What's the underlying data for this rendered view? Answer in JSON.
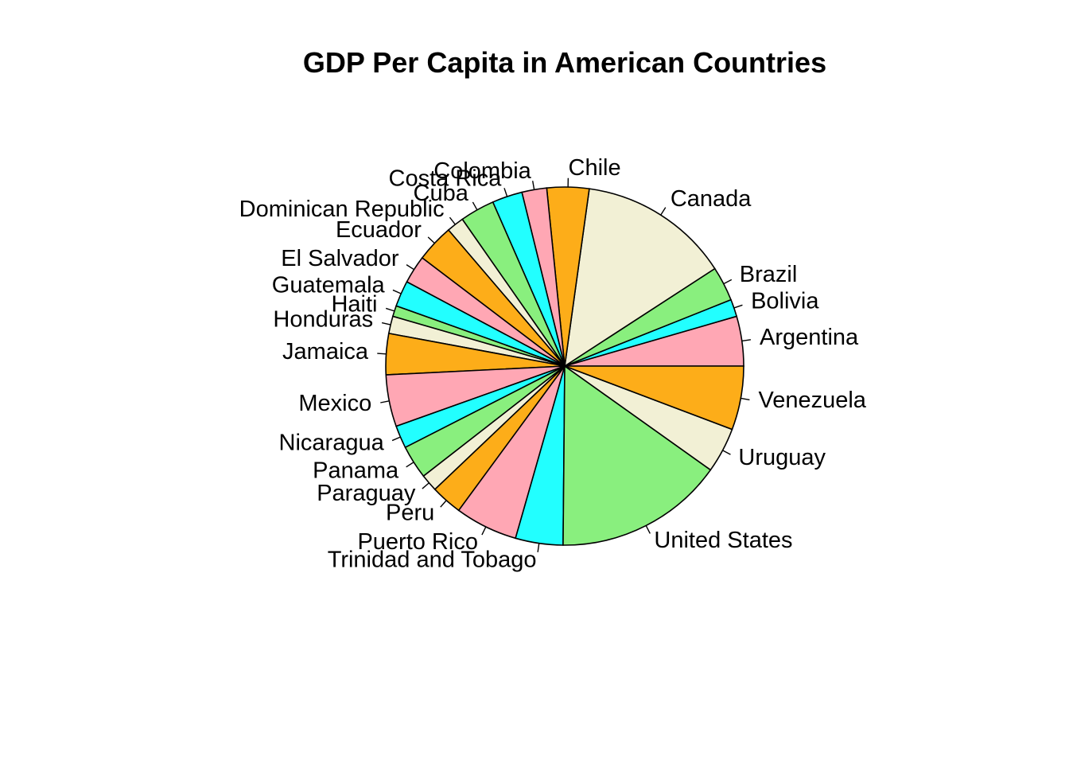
{
  "chart_data": {
    "type": "pie",
    "title": "GDP Per Capita in American Countries",
    "start_angle_deg": 0,
    "direction": "counterclockwise",
    "slices": [
      {
        "label": "Argentina",
        "value": 4.6,
        "color": "#FFA7B4"
      },
      {
        "label": "Bolivia",
        "value": 1.6,
        "color": "#22FFFF"
      },
      {
        "label": "Brazil",
        "value": 3.2,
        "color": "#89EF7E"
      },
      {
        "label": "Canada",
        "value": 14.0,
        "color": "#F2F0D5"
      },
      {
        "label": "Chile",
        "value": 3.9,
        "color": "#FDAD19"
      },
      {
        "label": "Colombia",
        "value": 2.3,
        "color": "#FFA7B4"
      },
      {
        "label": "Costa Rica",
        "value": 2.8,
        "color": "#22FFFF"
      },
      {
        "label": "Cuba",
        "value": 3.2,
        "color": "#89EF7E"
      },
      {
        "label": "Dominican Republic",
        "value": 1.6,
        "color": "#F2F0D5"
      },
      {
        "label": "Ecuador",
        "value": 3.5,
        "color": "#FDAD19"
      },
      {
        "label": "El Salvador",
        "value": 2.6,
        "color": "#FFA7B4"
      },
      {
        "label": "Guatemala",
        "value": 2.4,
        "color": "#22FFFF"
      },
      {
        "label": "Haiti",
        "value": 1.0,
        "color": "#89EF7E"
      },
      {
        "label": "Honduras",
        "value": 1.6,
        "color": "#F2F0D5"
      },
      {
        "label": "Jamaica",
        "value": 3.8,
        "color": "#FDAD19"
      },
      {
        "label": "Mexico",
        "value": 4.8,
        "color": "#FFA7B4"
      },
      {
        "label": "Nicaragua",
        "value": 2.1,
        "color": "#22FFFF"
      },
      {
        "label": "Panama",
        "value": 3.1,
        "color": "#89EF7E"
      },
      {
        "label": "Paraguay",
        "value": 1.6,
        "color": "#F2F0D5"
      },
      {
        "label": "Peru",
        "value": 2.9,
        "color": "#FDAD19"
      },
      {
        "label": "Puerto Rico",
        "value": 5.8,
        "color": "#FFA7B4"
      },
      {
        "label": "Trinidad and Tobago",
        "value": 4.4,
        "color": "#22FFFF"
      },
      {
        "label": "United States",
        "value": 15.7,
        "color": "#89EF7E"
      },
      {
        "label": "Uruguay",
        "value": 4.2,
        "color": "#F2F0D5"
      },
      {
        "label": "Venezuela",
        "value": 5.9,
        "color": "#FDAD19"
      }
    ]
  }
}
